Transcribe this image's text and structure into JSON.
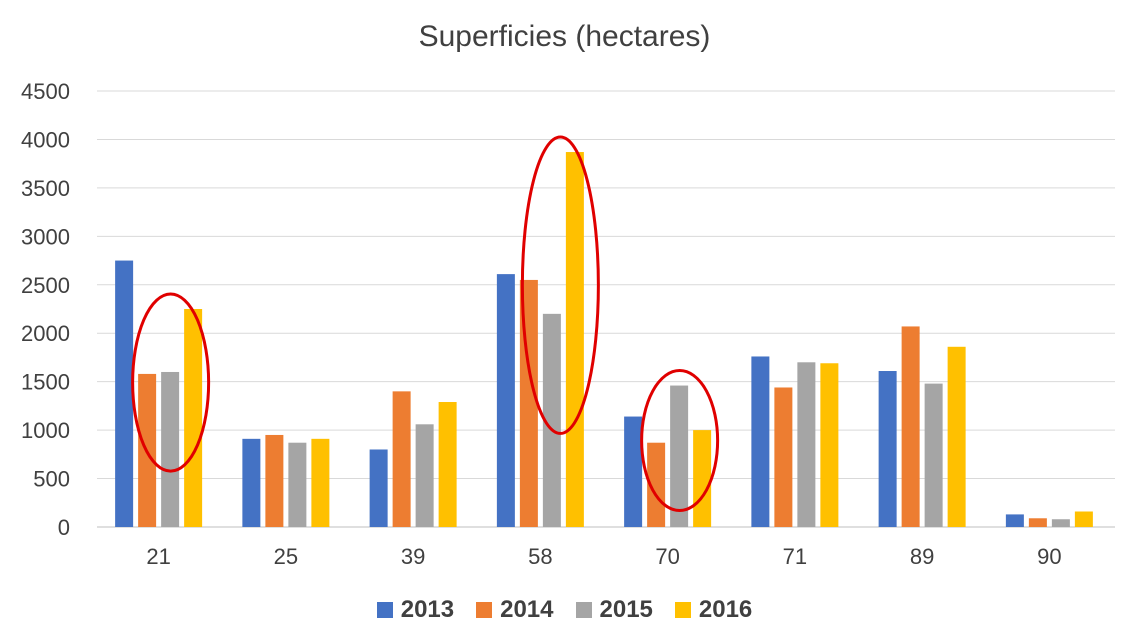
{
  "chart_data": {
    "type": "bar",
    "title": "Superficies (hectares)",
    "xlabel": "",
    "ylabel": "",
    "ylim": [
      0,
      4500
    ],
    "yticks": [
      "0",
      "500",
      "1000",
      "1500",
      "2000",
      "2500",
      "3000",
      "3500",
      "4000",
      "4500"
    ],
    "grid": true,
    "legend": "bottom",
    "categories": [
      "21",
      "25",
      "39",
      "58",
      "70",
      "71",
      "89",
      "90"
    ],
    "series": [
      {
        "name": "2013",
        "color": "#4472C4",
        "values": [
          2750,
          910,
          800,
          2610,
          1140,
          1760,
          1610,
          130
        ]
      },
      {
        "name": "2014",
        "color": "#ED7D31",
        "values": [
          1580,
          950,
          1400,
          2550,
          870,
          1440,
          2070,
          90
        ]
      },
      {
        "name": "2015",
        "color": "#A5A5A5",
        "values": [
          1600,
          870,
          1060,
          2200,
          1460,
          1700,
          1480,
          80
        ]
      },
      {
        "name": "2016",
        "color": "#FFC000",
        "values": [
          2250,
          910,
          1290,
          3870,
          1000,
          1690,
          1860,
          160
        ]
      }
    ],
    "annotations": [
      {
        "type": "ellipse",
        "category": "21",
        "color": "#E00000"
      },
      {
        "type": "ellipse",
        "category": "58",
        "color": "#E00000"
      },
      {
        "type": "ellipse",
        "category": "70",
        "color": "#E00000"
      }
    ]
  }
}
